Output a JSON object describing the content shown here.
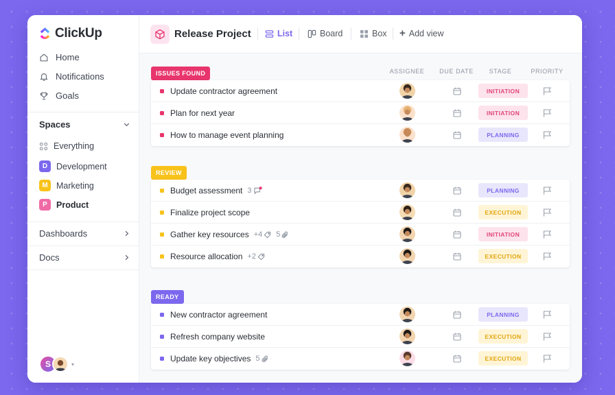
{
  "app": {
    "name": "ClickUp"
  },
  "sidebar": {
    "nav": [
      {
        "label": "Home",
        "icon": "home-icon"
      },
      {
        "label": "Notifications",
        "icon": "bell-icon"
      },
      {
        "label": "Goals",
        "icon": "trophy-icon"
      }
    ],
    "spaces_heading": "Spaces",
    "everything_label": "Everything",
    "spaces": [
      {
        "letter": "D",
        "label": "Development",
        "color": "#7b68ee"
      },
      {
        "letter": "M",
        "label": "Marketing",
        "color": "#f8c21b"
      },
      {
        "letter": "P",
        "label": "Product",
        "color": "#f06aa6"
      }
    ],
    "dashboards_label": "Dashboards",
    "docs_label": "Docs",
    "user_initial": "S"
  },
  "header": {
    "project_title": "Release Project",
    "views": [
      {
        "label": "List",
        "icon": "list-icon",
        "active": true
      },
      {
        "label": "Board",
        "icon": "board-icon",
        "active": false
      },
      {
        "label": "Box",
        "icon": "box-icon",
        "active": false
      }
    ],
    "add_view_label": "Add view"
  },
  "columns": [
    "ASSIGNEE",
    "DUE DATE",
    "STAGE",
    "PRIORITY"
  ],
  "groups": [
    {
      "label": "ISSUES FOUND",
      "color": "#e8356d",
      "tasks": [
        {
          "name": "Update contractor agreement",
          "stage": "INITIATION"
        },
        {
          "name": "Plan for next year",
          "stage": "INITIATION"
        },
        {
          "name": "How to manage event planning",
          "stage": "PLANNING"
        }
      ]
    },
    {
      "label": "REVIEW",
      "color": "#f8c21b",
      "tasks": [
        {
          "name": "Budget assessment",
          "meta_count": "3",
          "meta_icon": "comment-icon",
          "stage": "PLANNING"
        },
        {
          "name": "Finalize project scope",
          "stage": "EXECUTION"
        },
        {
          "name": "Gather key resources",
          "meta_tags": "+4",
          "meta_count": "5",
          "meta_icon": "attachment-icon",
          "stage": "INITIATION"
        },
        {
          "name": "Resource allocation",
          "meta_tags": "+2",
          "stage": "EXECUTION"
        }
      ]
    },
    {
      "label": "READY",
      "color": "#7b68ee",
      "tasks": [
        {
          "name": "New contractor agreement",
          "stage": "PLANNING"
        },
        {
          "name": "Refresh company website",
          "stage": "EXECUTION"
        },
        {
          "name": "Update key objectives",
          "meta_count": "5",
          "meta_icon": "attachment-icon",
          "stage": "EXECUTION"
        }
      ]
    }
  ]
}
